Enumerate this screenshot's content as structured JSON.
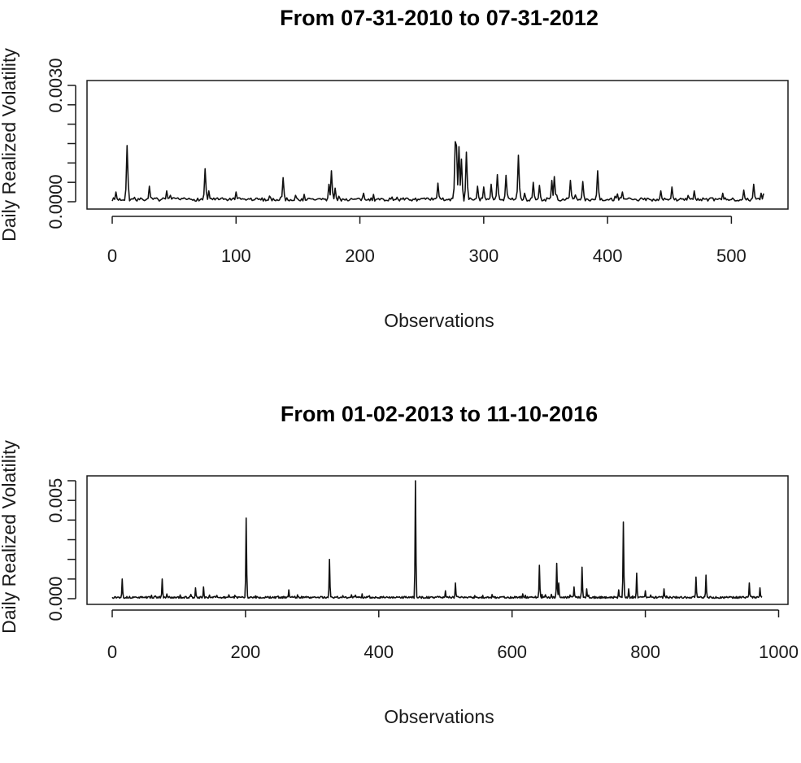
{
  "chart_data": [
    {
      "type": "line",
      "title": "From 07-31-2010 to 07-31-2012",
      "xlabel": "Observations",
      "ylabel": "Daily Realized Volatility",
      "xlim": [
        0,
        526
      ],
      "ylim": [
        0,
        0.003
      ],
      "x_ticks": [
        0,
        100,
        200,
        300,
        400,
        500
      ],
      "x_tick_labels": [
        "0",
        "100",
        "200",
        "300",
        "400",
        "500"
      ],
      "y_ticks": [
        0,
        0.0005,
        0.001,
        0.0015,
        0.002,
        0.0025,
        0.003
      ],
      "y_tick_labels": [
        "0.0000",
        "",
        "",
        "",
        "",
        "",
        "0.0030"
      ],
      "grid": false,
      "series": [
        {
          "baseline": 7e-05,
          "peaks": [
            [
              3,
              0.00025
            ],
            [
              12,
              0.00145
            ],
            [
              30,
              0.0004
            ],
            [
              44,
              0.00028
            ],
            [
              75,
              0.00085
            ],
            [
              78,
              0.00028
            ],
            [
              100,
              0.00025
            ],
            [
              138,
              0.00062
            ],
            [
              175,
              0.00045
            ],
            [
              177,
              0.0008
            ],
            [
              180,
              0.00035
            ],
            [
              203,
              0.00022
            ],
            [
              263,
              0.00048
            ],
            [
              277,
              0.00155
            ],
            [
              278,
              0.00145
            ],
            [
              280,
              0.00142
            ],
            [
              282,
              0.0011
            ],
            [
              286,
              0.00128
            ],
            [
              295,
              0.0004
            ],
            [
              300,
              0.00038
            ],
            [
              306,
              0.00045
            ],
            [
              311,
              0.0007
            ],
            [
              318,
              0.00068
            ],
            [
              328,
              0.0012
            ],
            [
              340,
              0.0005
            ],
            [
              345,
              0.00042
            ],
            [
              355,
              0.00055
            ],
            [
              357,
              0.00065
            ],
            [
              370,
              0.00055
            ],
            [
              380,
              0.00052
            ],
            [
              392,
              0.0008
            ],
            [
              412,
              0.00025
            ],
            [
              443,
              0.00028
            ],
            [
              452,
              0.00038
            ],
            [
              470,
              0.00028
            ],
            [
              493,
              0.00022
            ],
            [
              510,
              0.0003
            ],
            [
              518,
              0.00045
            ],
            [
              524,
              0.00022
            ]
          ]
        }
      ]
    },
    {
      "type": "line",
      "title": "From 01-02-2013 to 11-10-2016",
      "xlabel": "Observations",
      "ylabel": "Daily Realized Volatility",
      "xlim": [
        0,
        975
      ],
      "ylim": [
        0,
        0.006
      ],
      "x_ticks": [
        0,
        200,
        400,
        600,
        800,
        1000
      ],
      "x_tick_labels": [
        "0",
        "200",
        "400",
        "600",
        "800",
        "1000"
      ],
      "y_ticks": [
        0,
        0.001,
        0.002,
        0.003,
        0.004,
        0.005,
        0.006
      ],
      "y_tick_labels": [
        "0.000",
        "",
        "",
        "",
        "",
        "0.005",
        ""
      ],
      "grid": false,
      "series": [
        {
          "baseline": 8e-05,
          "peaks": [
            [
              15,
              0.001
            ],
            [
              75,
              0.001
            ],
            [
              125,
              0.00055
            ],
            [
              137,
              0.0006
            ],
            [
              201,
              0.0041
            ],
            [
              265,
              0.00045
            ],
            [
              326,
              0.002
            ],
            [
              455,
              0.006
            ],
            [
              500,
              0.0004
            ],
            [
              515,
              0.0008
            ],
            [
              641,
              0.0017
            ],
            [
              667,
              0.0018
            ],
            [
              670,
              0.0008
            ],
            [
              693,
              0.0006
            ],
            [
              705,
              0.0016
            ],
            [
              712,
              0.0005
            ],
            [
              760,
              0.00045
            ],
            [
              767,
              0.0039
            ],
            [
              775,
              0.0005
            ],
            [
              787,
              0.0013
            ],
            [
              800,
              0.0004
            ],
            [
              828,
              0.0005
            ],
            [
              876,
              0.0011
            ],
            [
              891,
              0.0012
            ],
            [
              956,
              0.0008
            ],
            [
              972,
              0.00055
            ]
          ]
        }
      ]
    }
  ]
}
